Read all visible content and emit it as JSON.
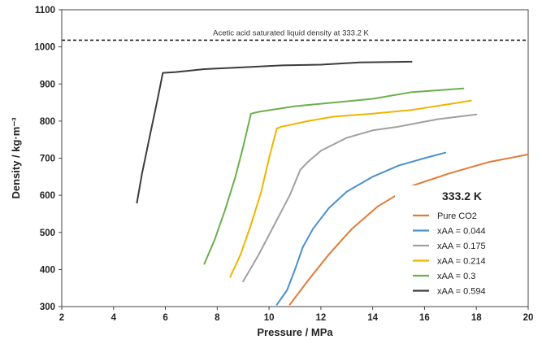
{
  "chart_data": {
    "type": "line",
    "title": "",
    "xlabel": "Pressure / MPa",
    "ylabel": "Density / kg·m⁻³",
    "xlim": [
      2,
      20
    ],
    "ylim": [
      300,
      1100
    ],
    "xticks": [
      "2",
      "4",
      "6",
      "8",
      "10",
      "12",
      "14",
      "16",
      "18",
      "20"
    ],
    "yticks": [
      "300",
      "400",
      "500",
      "600",
      "700",
      "800",
      "900",
      "1000",
      "1100"
    ],
    "grid": false,
    "legend_placement": "bottom-right",
    "legend_title": "333.2 K",
    "reference_line": {
      "label": "Acetic acid saturated liquid density at 333.2 K",
      "y": 1018,
      "style": "dashed",
      "color": "#222222"
    },
    "series": [
      {
        "name": "Pure CO2",
        "color": "#E07B39",
        "x": [
          10.8,
          11.5,
          12.3,
          13.2,
          14.2,
          15.5,
          17.0,
          18.5,
          20.0
        ],
        "y": [
          305,
          370,
          440,
          510,
          570,
          625,
          660,
          690,
          710
        ]
      },
      {
        "name": "xAA = 0.044",
        "color": "#4A90D0",
        "x": [
          10.3,
          10.7,
          11.0,
          11.3,
          11.7,
          12.3,
          13.0,
          14.0,
          15.0,
          16.0,
          16.8
        ],
        "y": [
          305,
          345,
          400,
          460,
          510,
          565,
          610,
          650,
          680,
          700,
          715
        ]
      },
      {
        "name": "xAA = 0.175",
        "color": "#A0A0A0",
        "x": [
          9.0,
          9.6,
          10.2,
          10.8,
          11.2,
          11.5,
          12.0,
          13.0,
          14.0,
          15.0,
          16.5,
          18.0
        ],
        "y": [
          368,
          440,
          520,
          600,
          668,
          690,
          720,
          755,
          775,
          785,
          805,
          818
        ]
      },
      {
        "name": "xAA = 0.214",
        "color": "#F0B400",
        "x": [
          8.5,
          8.9,
          9.3,
          9.7,
          10.0,
          10.3,
          10.5,
          11.5,
          12.5,
          14.0,
          15.5,
          17.8
        ],
        "y": [
          380,
          440,
          520,
          610,
          700,
          780,
          785,
          800,
          812,
          820,
          830,
          855
        ]
      },
      {
        "name": "xAA = 0.3",
        "color": "#6AB04C",
        "x": [
          7.5,
          7.9,
          8.3,
          8.7,
          9.0,
          9.3,
          9.6,
          11.0,
          12.5,
          14.0,
          15.5,
          17.5
        ],
        "y": [
          415,
          480,
          560,
          650,
          730,
          820,
          825,
          840,
          850,
          860,
          878,
          888
        ]
      },
      {
        "name": "xAA = 0.594",
        "color": "#3C3C3C",
        "x": [
          4.9,
          5.1,
          5.4,
          5.7,
          5.9,
          6.4,
          7.5,
          9.0,
          10.5,
          12.0,
          13.5,
          15.5
        ],
        "y": [
          580,
          660,
          760,
          860,
          930,
          932,
          940,
          945,
          950,
          952,
          958,
          960
        ]
      }
    ]
  }
}
